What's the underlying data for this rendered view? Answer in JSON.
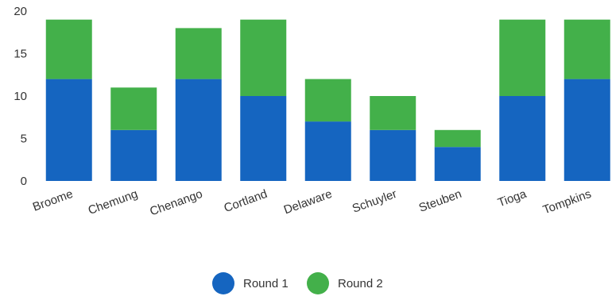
{
  "chart_data": {
    "type": "bar",
    "stacked": true,
    "categories": [
      "Broome",
      "Chemung",
      "Chenango",
      "Cortland",
      "Delaware",
      "Schuyler",
      "Steuben",
      "Tioga",
      "Tompkins"
    ],
    "series": [
      {
        "name": "Round 1",
        "color": "#1565c0",
        "values": [
          12,
          6,
          12,
          10,
          7,
          6,
          4,
          10,
          12
        ]
      },
      {
        "name": "Round 2",
        "color": "#43b04a",
        "values": [
          7,
          5,
          6,
          9,
          5,
          4,
          2,
          9,
          7
        ]
      }
    ],
    "ylim": [
      0,
      20
    ],
    "yticks": [
      0,
      5,
      10,
      15,
      20
    ],
    "grid": false,
    "legend_position": "bottom"
  }
}
